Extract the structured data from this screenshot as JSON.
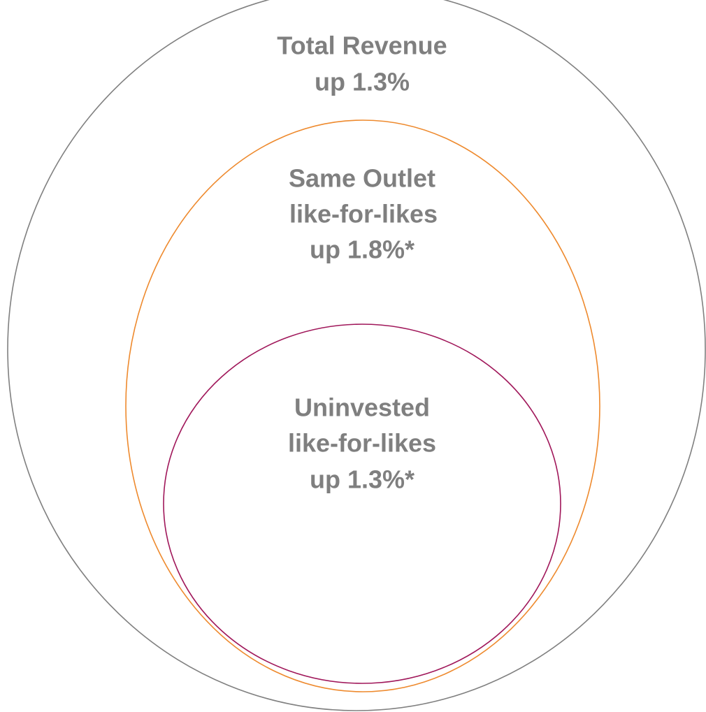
{
  "nodes": [
    {
      "lines": [
        "Total Revenue",
        "up 1.3%"
      ]
    },
    {
      "lines": [
        "Same Outlet",
        "like-for-likes",
        "up 1.8%*"
      ]
    },
    {
      "lines": [
        "Uninvested",
        "like-for-likes",
        "up 1.3%*"
      ]
    }
  ]
}
